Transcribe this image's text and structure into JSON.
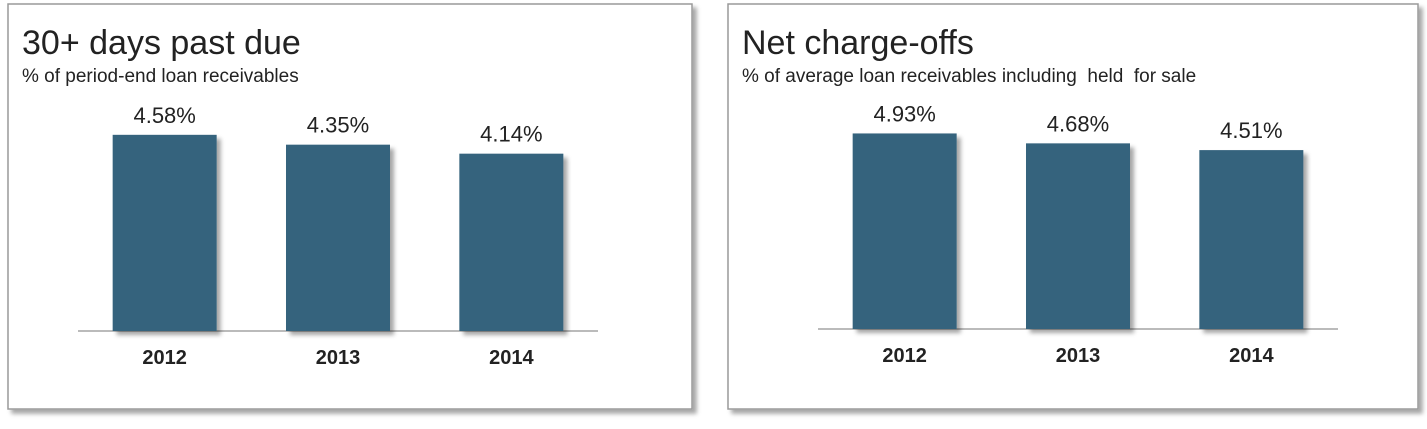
{
  "chart_data": [
    {
      "type": "bar",
      "title": "30+ days past due",
      "subtitle": "% of period-end loan receivables",
      "categories": [
        "2012",
        "2013",
        "2014"
      ],
      "values": [
        4.58,
        4.35,
        4.14
      ],
      "value_labels": [
        "4.58%",
        "4.35%",
        "4.14%"
      ],
      "color": "#34637d",
      "ylim": [
        0,
        6
      ]
    },
    {
      "type": "bar",
      "title": "Net charge-offs",
      "subtitle": "% of average loan receivables including  held  for sale",
      "categories": [
        "2012",
        "2013",
        "2014"
      ],
      "values": [
        4.93,
        4.68,
        4.51
      ],
      "value_labels": [
        "4.93%",
        "4.68%",
        "4.51%"
      ],
      "color": "#34637d",
      "ylim": [
        0,
        6
      ]
    }
  ]
}
